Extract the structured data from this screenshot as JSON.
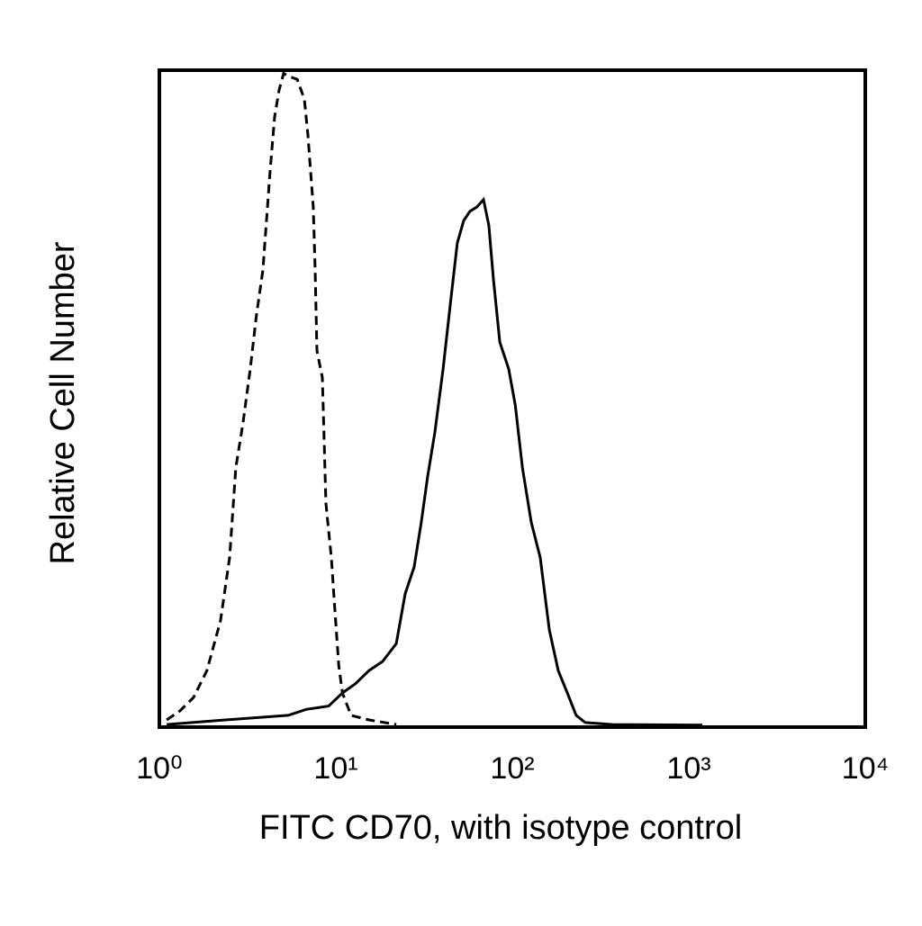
{
  "chart_data": {
    "type": "line",
    "x_label": "FITC CD70, with isotype control",
    "y_label": "Relative Cell Number",
    "xscale": "log",
    "xlim": [
      1,
      10000
    ],
    "ylim": [
      0,
      100
    ],
    "xticks": [
      {
        "value": 1,
        "label": "10⁰"
      },
      {
        "value": 10,
        "label": "10¹"
      },
      {
        "value": 100,
        "label": "10²"
      },
      {
        "value": 1000,
        "label": "10³"
      },
      {
        "value": 10000,
        "label": "10⁴"
      }
    ],
    "series": [
      {
        "color": "#000000",
        "line_style": "dashed",
        "x": [
          1.1,
          1.31,
          1.56,
          1.86,
          2.22,
          2.5,
          2.71,
          2.98,
          3.27,
          3.55,
          3.86,
          4.24,
          4.5,
          4.77,
          5.06,
          5.5,
          6.04,
          6.63,
          6.95,
          7.45,
          7.63,
          7.81,
          8.38,
          8.79,
          9.43,
          9.89,
          10.4,
          10.9,
          12.2,
          15.4,
          22
        ],
        "values": [
          1.1,
          2.5,
          4.5,
          8.6,
          16.2,
          25.8,
          39.5,
          46.3,
          54.5,
          62.7,
          69.6,
          84.7,
          92.9,
          97.0,
          99.5,
          99.0,
          98.6,
          95.6,
          90.1,
          79.2,
          69.6,
          57.3,
          53.2,
          34.0,
          25.8,
          17.5,
          9.3,
          5.2,
          1.8,
          1.1,
          0.4
        ]
      },
      {
        "color": "#000000",
        "line_style": "solid",
        "x": [
          1.1,
          2.36,
          5.37,
          6.79,
          9.1,
          10.9,
          12.9,
          15.4,
          18.4,
          22,
          24.7,
          27.8,
          30.5,
          33.1,
          36.4,
          40.5,
          44.4,
          48.8,
          53,
          57.5,
          63.2,
          68.7,
          73.6,
          78.1,
          84.9,
          95.4,
          104,
          114,
          128,
          144,
          162,
          182,
          205,
          230,
          259,
          368,
          1194
        ],
        "values": [
          0.4,
          1.1,
          1.8,
          2.7,
          3.2,
          5.2,
          6.6,
          8.6,
          10.0,
          12.7,
          20.3,
          24.4,
          31.2,
          38.1,
          44.9,
          54.5,
          64.1,
          73.7,
          77.1,
          78.5,
          79.2,
          80.3,
          76.4,
          68.2,
          58.6,
          54.5,
          49.0,
          39.5,
          31.2,
          25.8,
          14.8,
          8.6,
          5.2,
          1.8,
          0.7,
          0.4,
          0.3
        ]
      }
    ]
  }
}
